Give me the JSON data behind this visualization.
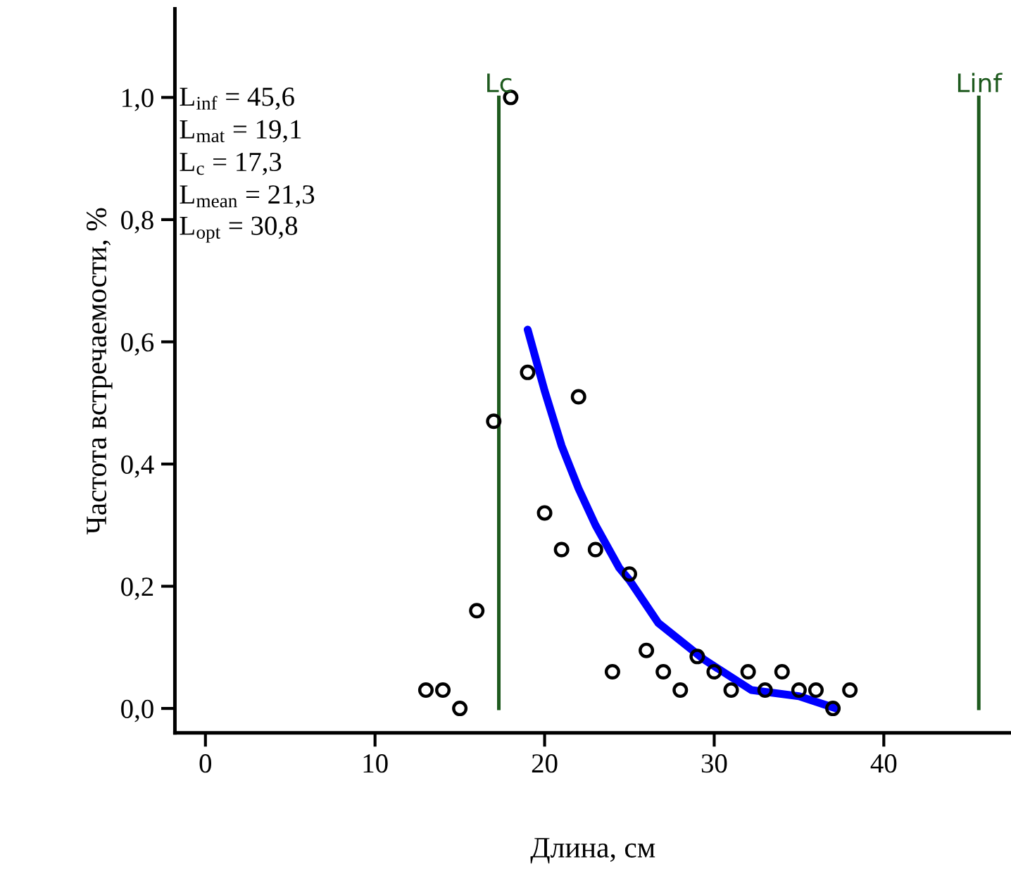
{
  "chart_data": {
    "type": "scatter",
    "xlabel": "Длина, см",
    "ylabel": "Частота встречаемости, %",
    "xlim": [
      -1.8,
      47.5
    ],
    "ylim": [
      -0.04,
      1.145
    ],
    "xticks": [
      0,
      10,
      20,
      30,
      40
    ],
    "yticks": [
      {
        "value": 0,
        "label": "0,0"
      },
      {
        "value": 0.2,
        "label": "0,2"
      },
      {
        "value": 0.4,
        "label": "0,4"
      },
      {
        "value": 0.6,
        "label": "0,6"
      },
      {
        "value": 0.8,
        "label": "0,8"
      },
      {
        "value": 1.0,
        "label": "1,0"
      }
    ],
    "grid": false,
    "legend": false,
    "series": [
      {
        "color": "#000000",
        "marker": "circle",
        "x": [
          13,
          14,
          15,
          16,
          17,
          18,
          19,
          20,
          21,
          22,
          23,
          24,
          25,
          26,
          27,
          28,
          29,
          30,
          31,
          32,
          33,
          34,
          35,
          36,
          37,
          38
        ],
        "values": [
          0.03,
          0.03,
          0.0,
          0.16,
          0.47,
          1.0,
          0.55,
          0.32,
          0.26,
          0.51,
          0.26,
          0.06,
          0.22,
          0.095,
          0.06,
          0.03,
          0.085,
          0.06,
          0.03,
          0.06,
          0.03,
          0.06,
          0.03,
          0.03,
          0.0,
          0.03
        ]
      },
      {
        "type": "line",
        "color": "#0000ff",
        "marker": "none",
        "line_style": "solid",
        "x": [
          19,
          20,
          21,
          22,
          23,
          24.4,
          25,
          26.7,
          29.4,
          32.2,
          35,
          37.2
        ],
        "values": [
          0.62,
          0.52,
          0.43,
          0.36,
          0.3,
          0.23,
          0.21,
          0.14,
          0.08,
          0.03,
          0.02,
          0.0
        ]
      }
    ],
    "ref_lines": [
      {
        "axis": "x",
        "value": 17.3,
        "label": "Lc",
        "color": "#1e5a1e"
      },
      {
        "axis": "x",
        "value": 45.6,
        "label": "Linf",
        "color": "#1e5a1e"
      }
    ],
    "annotations": [
      "L$_{inf}$ = 45,6",
      "L$_{mat}$ = 19,1",
      "L$_{c}$ = 17,3",
      "L$_{mean}$ = 21,3",
      "L$_{opt}$ = 30,8"
    ]
  }
}
